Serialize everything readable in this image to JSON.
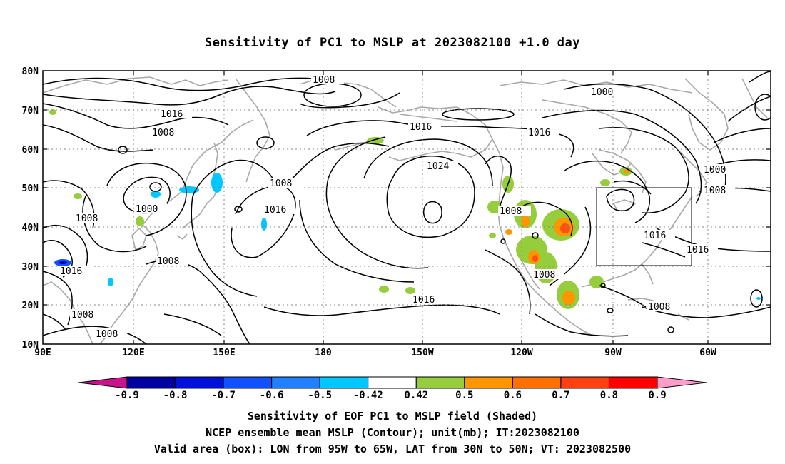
{
  "title": "Sensitivity of PC1 to MSLP at 2023082100 +1.0 day",
  "axes": {
    "lat_ticks": [
      "80N",
      "70N",
      "60N",
      "50N",
      "40N",
      "30N",
      "20N",
      "10N"
    ],
    "lon_ticks": [
      "90E",
      "120E",
      "150E",
      "180",
      "150W",
      "120W",
      "90W",
      "60W"
    ]
  },
  "contour_labels": [
    {
      "id": "c1",
      "text": "1008"
    },
    {
      "id": "c2",
      "text": "1016"
    },
    {
      "id": "c3",
      "text": "1008"
    },
    {
      "id": "c4",
      "text": "1008"
    },
    {
      "id": "c5",
      "text": "1000"
    },
    {
      "id": "c6",
      "text": "1008"
    },
    {
      "id": "c7",
      "text": "1016"
    },
    {
      "id": "c8",
      "text": "1008"
    },
    {
      "id": "c9",
      "text": "1008"
    },
    {
      "id": "c10",
      "text": "1016"
    },
    {
      "id": "c11",
      "text": "1016"
    },
    {
      "id": "c12",
      "text": "1024"
    },
    {
      "id": "c13",
      "text": "1016"
    },
    {
      "id": "c14",
      "text": "1016"
    },
    {
      "id": "c15",
      "text": "1008"
    },
    {
      "id": "c16",
      "text": "1008"
    },
    {
      "id": "c17",
      "text": "1000"
    },
    {
      "id": "c18",
      "text": "1000"
    },
    {
      "id": "c19",
      "text": "1008"
    },
    {
      "id": "c20",
      "text": "1016"
    },
    {
      "id": "c21",
      "text": "1016"
    },
    {
      "id": "c22",
      "text": "1008"
    }
  ],
  "colorbar": {
    "labels": [
      "-0.9",
      "-0.8",
      "-0.7",
      "-0.6",
      "-0.5",
      "-0.42",
      "0.42",
      "0.5",
      "0.6",
      "0.7",
      "0.8",
      "0.9"
    ],
    "colors": [
      "#0000a0",
      "#0010d8",
      "#1050ff",
      "#2080ff",
      "#00c8ff",
      "#ffffff",
      "#96cd3c",
      "#ff9600",
      "#ff7000",
      "#ff4010",
      "#ff0000"
    ],
    "under_color": "#c8148c",
    "over_color": "#ff9ec8"
  },
  "captions": {
    "line1": "Sensitivity of EOF PC1 to MSLP field (Shaded)",
    "line2": "NCEP ensemble mean MSLP (Contour); unit(mb); IT:2023082100",
    "line3": "Valid area (box): LON from 95W to 65W, LAT from 30N to 50N; VT: 2023082500"
  },
  "colors": {
    "coastline": "#a8a8a8",
    "contour": "#000000",
    "grid": "#888888"
  }
}
